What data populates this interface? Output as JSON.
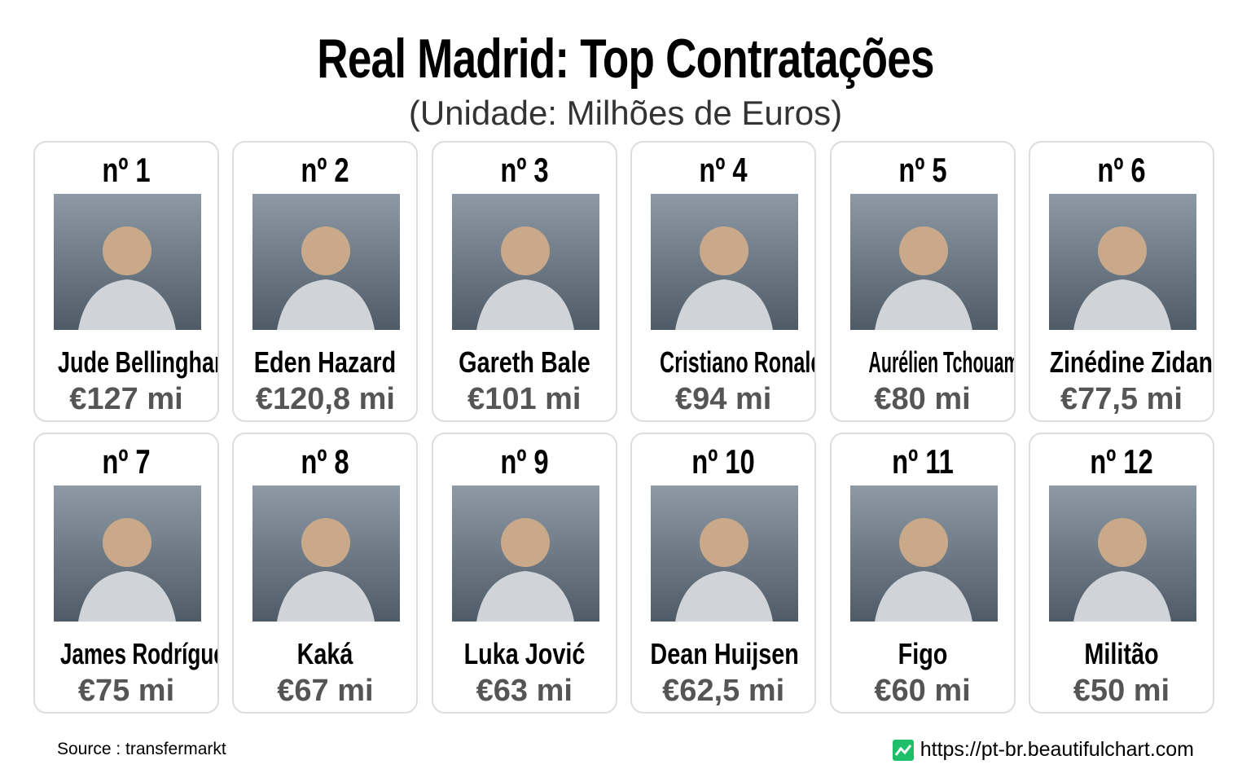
{
  "header": {
    "title": "Real Madrid: Top Contratações",
    "subtitle": "(Unidade: Milhões de Euros)"
  },
  "cards": [
    {
      "rank": "nº 1",
      "name": "Jude Bellingham",
      "fee": "€127 mi"
    },
    {
      "rank": "nº 2",
      "name": "Eden Hazard",
      "fee": "€120,8 mi"
    },
    {
      "rank": "nº 3",
      "name": "Gareth Bale",
      "fee": "€101 mi"
    },
    {
      "rank": "nº 4",
      "name": "Cristiano Ronaldo",
      "fee": "€94 mi"
    },
    {
      "rank": "nº 5",
      "name": "Aurélien Tchouaméni",
      "fee": "€80 mi"
    },
    {
      "rank": "nº 6",
      "name": "Zinédine Zidane",
      "fee": "€77,5 mi"
    },
    {
      "rank": "nº 7",
      "name": "James Rodríguez",
      "fee": "€75 mi"
    },
    {
      "rank": "nº 8",
      "name": "Kaká",
      "fee": "€67 mi"
    },
    {
      "rank": "nº 9",
      "name": "Luka Jović",
      "fee": "€63 mi"
    },
    {
      "rank": "nº 10",
      "name": "Dean Huijsen",
      "fee": "€62,5 mi"
    },
    {
      "rank": "nº 11",
      "name": "Figo",
      "fee": "€60 mi"
    },
    {
      "rank": "nº 12",
      "name": "Militão",
      "fee": "€50 mi"
    }
  ],
  "footer": {
    "source": "Source : transfermarkt",
    "url": "https://pt-br.beautifulchart.com"
  }
}
